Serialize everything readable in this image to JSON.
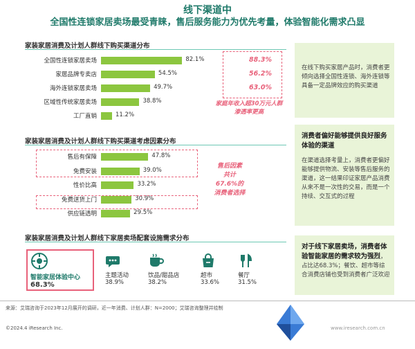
{
  "header": {
    "title": "线下渠道中",
    "subtitle": "全国性连锁家居卖场最受青睐，售后服务能力为优先考量，体验智能化需求凸显"
  },
  "section1": {
    "title": "家装家居消费及计划人群线下购买渠道分布",
    "highlight_pcts": [
      "88.3%",
      "56.2%",
      "63.0%"
    ],
    "note": [
      "家庭年收入超30万元人群",
      "渗透率更高"
    ]
  },
  "section2": {
    "title": "家装家居消费及计划人群线下购买渠道考虑因素分布",
    "note": [
      "售后因素",
      "共计",
      "67.6%的",
      "消费者选择"
    ]
  },
  "section3": {
    "title": "家装家居消费及计划人群线下家居卖场配套设施需求分布",
    "items": [
      {
        "label": "智能家居体验中心",
        "value": "68.3%",
        "icon": "smart-home-icon"
      },
      {
        "label": "主题活动",
        "value": "38.9%",
        "icon": "chat-icon"
      },
      {
        "label": "饮品/甜品店",
        "value": "38.2%",
        "icon": "cup-icon"
      },
      {
        "label": "超市",
        "value": "33.6%",
        "icon": "shopping-bag-icon"
      },
      {
        "label": "餐厅",
        "value": "31.5%",
        "icon": "cutlery-icon"
      }
    ]
  },
  "sidebar": {
    "p1": "在线下购买家居产品时，消费者更倾向选择全国性连锁、海外连锁等具备一定品牌效应的购买渠道",
    "h2": "消费者偏好能够提供良好服务体验的渠道",
    "p2": "在渠道选择考量上，消费者更偏好能够提供物流、安装等售后服务的渠道，这一结果印证家居产品消费从来不是一次性的交易，而是一个持续、交互式的过程",
    "h3": "对于线下家居卖场，消费者体验智能家居的需求较为强烈",
    "p3": "，占比达68.3%；餐饮、超市等综合消费店铺也受到消费者广泛欢迎"
  },
  "footer": {
    "source": "来源：艾瑞咨询于2023年12月展开的调研，近一年消费、计划人群：N=2000；艾瑞咨询整理并绘制",
    "copyright": "©2024.4 iResearch Inc.",
    "site": "www.iresearch.com.cn"
  },
  "chart_data": [
    {
      "type": "bar",
      "title": "家装家居消费及计划人群线下购买渠道分布",
      "categories": [
        "全国性连锁家居卖场",
        "家居品牌专卖店",
        "海外连锁家居卖场",
        "区域性传统家居卖场",
        "工厂直销"
      ],
      "values": [
        82.1,
        54.5,
        49.7,
        38.8,
        11.2
      ],
      "labels": [
        "82.1%",
        "54.5%",
        "49.7%",
        "38.8%",
        "11.2%"
      ],
      "xlim": [
        0,
        100
      ]
    },
    {
      "type": "bar",
      "title": "家装家居消费及计划人群线下购买渠道考虑因素分布",
      "categories": [
        "售后有保障",
        "免费安装",
        "性价比高",
        "免费送货上门",
        "供应链透明"
      ],
      "values": [
        47.8,
        39.0,
        33.2,
        30.9,
        29.5
      ],
      "labels": [
        "47.8%",
        "39.0%",
        "33.2%",
        "30.9%",
        "29.5%"
      ],
      "xlim": [
        0,
        100
      ]
    }
  ],
  "colors": {
    "accent": "#1f7a6a",
    "bar": "#8cc63f",
    "highlight": "#e8617a",
    "side_bg": "#e9f4d8"
  }
}
